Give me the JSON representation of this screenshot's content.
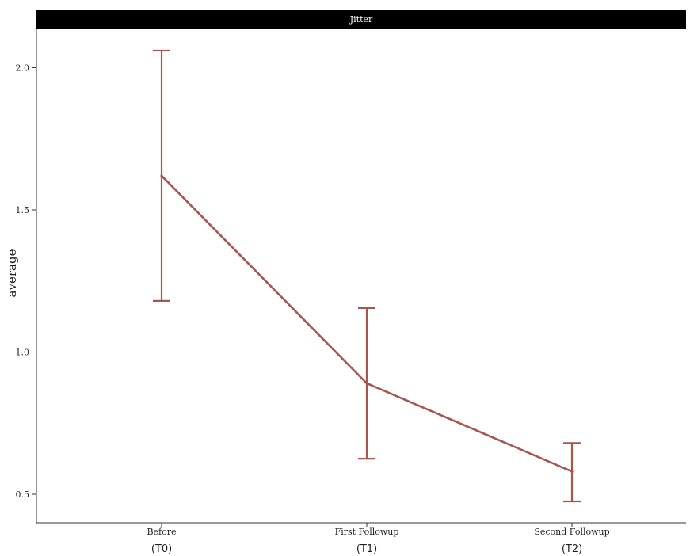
{
  "chart_data": {
    "type": "line",
    "panel_title": "Jitter",
    "ylabel": "average",
    "xlabel": "",
    "ylim": [
      0.4,
      2.15
    ],
    "yticks": [
      0.5,
      1.0,
      1.5,
      2.0
    ],
    "ytick_labels": [
      "0.5",
      "1.0",
      "1.5",
      "2.0"
    ],
    "categories": [
      {
        "label": "Before",
        "code": "(T0)"
      },
      {
        "label": "First Followup",
        "code": "(T1)"
      },
      {
        "label": "Second Followup",
        "code": "(T2)"
      }
    ],
    "series": [
      {
        "values": [
          1.62,
          0.89,
          0.58
        ],
        "lower": [
          1.18,
          0.625,
          0.475
        ],
        "upper": [
          2.06,
          1.155,
          0.68
        ],
        "color": "#a5564f"
      }
    ],
    "grid": false,
    "legend": "none",
    "colors": {
      "strip_background": "#000000",
      "strip_text": "#ffffff",
      "axis": "#333333"
    }
  }
}
